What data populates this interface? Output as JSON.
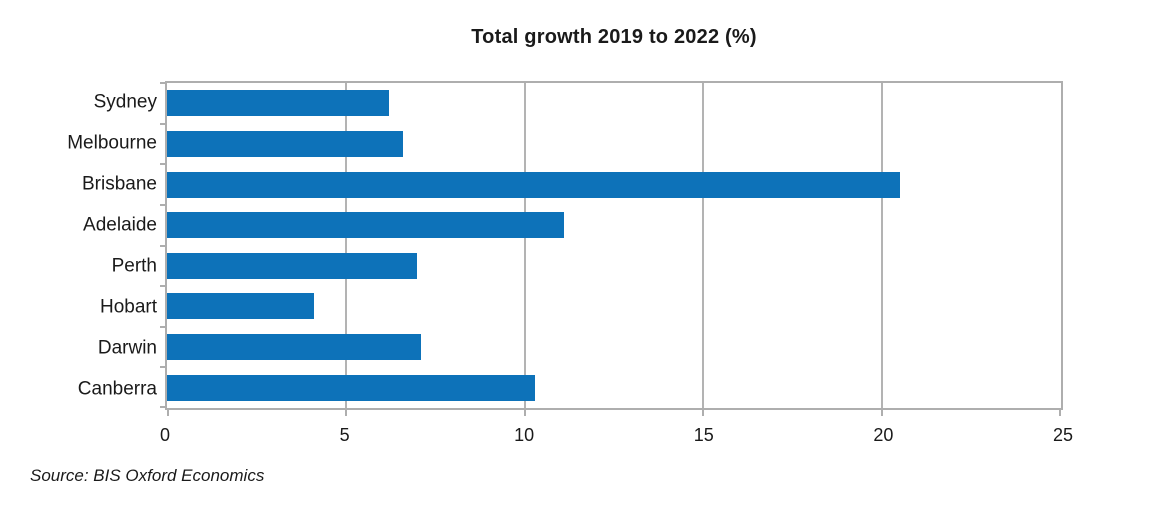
{
  "colors": {
    "bar": "#0d72b9",
    "gridline": "#b3b3b3",
    "axis_border": "#aeaeae",
    "text": "#1a1a1a"
  },
  "chart_data": {
    "type": "bar",
    "orientation": "horizontal",
    "title": "Total growth 2019 to 2022 (%)",
    "categories": [
      "Sydney",
      "Melbourne",
      "Brisbane",
      "Adelaide",
      "Perth",
      "Hobart",
      "Darwin",
      "Canberra"
    ],
    "values": [
      6.2,
      6.6,
      20.5,
      11.1,
      7.0,
      4.1,
      7.1,
      10.3
    ],
    "xlabel": "",
    "ylabel": "",
    "xlim": [
      0,
      25
    ],
    "xticks": [
      0,
      5,
      10,
      15,
      20,
      25
    ],
    "grid": true,
    "legend": false,
    "source": "Source: BIS Oxford Economics"
  }
}
